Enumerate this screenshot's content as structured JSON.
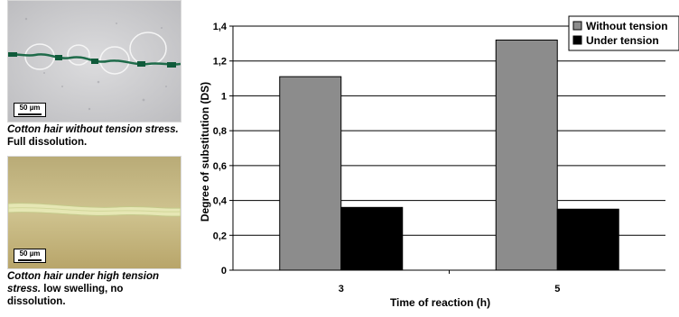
{
  "micrographs": [
    {
      "scale_label": "50 µm",
      "caption_italic": "Cotton hair without tension stress.",
      "caption_rest": " Full dissolution."
    },
    {
      "scale_label": "50 µm",
      "caption_italic": "Cotton hair under high tension stress.",
      "caption_rest": " low swelling, no dissolution."
    }
  ],
  "chart_data": {
    "type": "bar",
    "categories": [
      "3",
      "5"
    ],
    "series": [
      {
        "name": "Without tension",
        "values": [
          1.11,
          1.32
        ],
        "color": "#8c8c8c"
      },
      {
        "name": "Under tension",
        "values": [
          0.36,
          0.35
        ],
        "color": "#000000"
      }
    ],
    "xlabel": "Time of reaction (h)",
    "ylabel": "Degree of substitution (DS)",
    "ylim": [
      0,
      1.4
    ],
    "yticks": [
      "0",
      "0,2",
      "0,4",
      "0,6",
      "0,8",
      "1",
      "1,2",
      "1,4"
    ],
    "grid": true,
    "legend_position": "top-right"
  }
}
